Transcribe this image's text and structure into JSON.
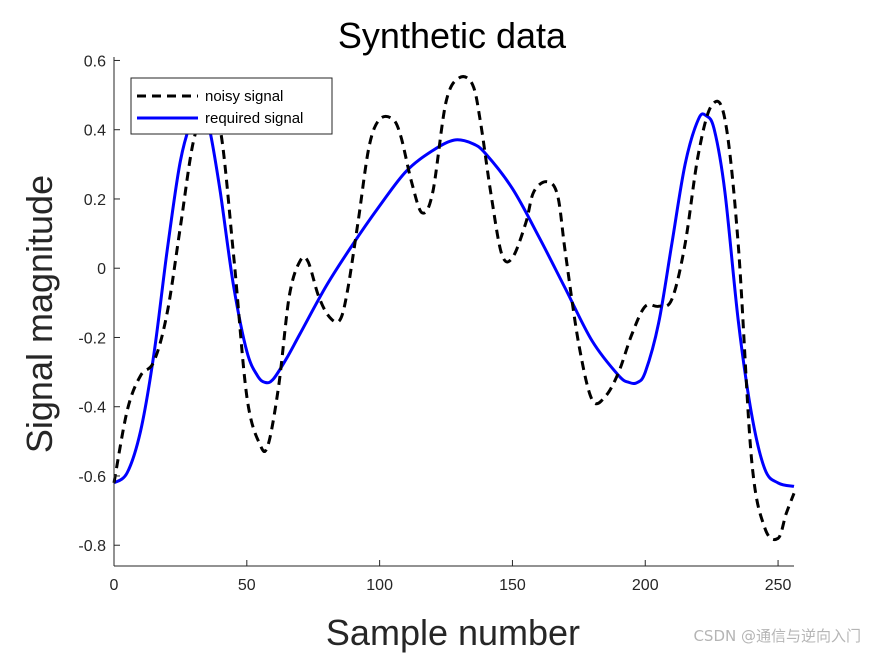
{
  "chart_data": {
    "type": "line",
    "title": "Synthetic data",
    "xlabel": "Sample number",
    "ylabel": "Signal magnitude",
    "xlim": [
      0,
      256
    ],
    "ylim": [
      -0.86,
      0.61
    ],
    "xticks": [
      0,
      50,
      100,
      150,
      200,
      250
    ],
    "yticks": [
      -0.8,
      -0.6,
      -0.4,
      -0.2,
      0,
      0.2,
      0.4,
      0.6
    ],
    "ytick_labels": [
      "-0.8",
      "-0.6",
      "-0.4",
      "-0.2",
      "0",
      "0.2",
      "0.4",
      "0.6"
    ],
    "grid": false,
    "legend_position": "top-left",
    "series": [
      {
        "name": "noisy signal",
        "color": "#000000",
        "style": "dashed",
        "x": [
          0,
          5,
          10,
          15,
          20,
          25,
          30,
          35,
          40,
          45,
          50,
          55,
          58,
          62,
          66,
          70,
          73,
          77,
          81,
          85,
          88,
          92,
          96,
          100,
          105,
          108,
          112,
          116,
          120,
          125,
          130,
          135,
          138,
          142,
          146,
          150,
          155,
          158,
          163,
          167,
          170,
          175,
          180,
          185,
          190,
          195,
          200,
          205,
          210,
          215,
          220,
          225,
          230,
          235,
          240,
          245,
          250,
          253,
          256
        ],
        "y": [
          -0.62,
          -0.41,
          -0.31,
          -0.27,
          -0.13,
          0.12,
          0.37,
          0.45,
          0.4,
          0.04,
          -0.37,
          -0.51,
          -0.51,
          -0.34,
          -0.08,
          0.02,
          0.02,
          -0.08,
          -0.14,
          -0.15,
          -0.06,
          0.14,
          0.35,
          0.43,
          0.43,
          0.38,
          0.25,
          0.16,
          0.22,
          0.48,
          0.55,
          0.53,
          0.42,
          0.21,
          0.04,
          0.03,
          0.13,
          0.22,
          0.25,
          0.21,
          0.04,
          -0.22,
          -0.38,
          -0.37,
          -0.3,
          -0.19,
          -0.11,
          -0.11,
          -0.09,
          0.07,
          0.33,
          0.47,
          0.43,
          0.07,
          -0.55,
          -0.75,
          -0.78,
          -0.71,
          -0.65
        ]
      },
      {
        "name": "required signal",
        "color": "#0000ff",
        "style": "solid",
        "x": [
          0,
          5,
          10,
          15,
          20,
          25,
          30,
          33,
          36,
          40,
          45,
          50,
          54,
          57,
          60,
          65,
          70,
          80,
          90,
          100,
          110,
          120,
          128,
          135,
          140,
          150,
          160,
          170,
          180,
          190,
          194,
          197,
          200,
          205,
          210,
          215,
          220,
          223,
          226,
          230,
          235,
          240,
          245,
          250,
          256
        ],
        "y": [
          -0.62,
          -0.59,
          -0.47,
          -0.25,
          0.05,
          0.31,
          0.44,
          0.45,
          0.4,
          0.22,
          -0.05,
          -0.24,
          -0.31,
          -0.33,
          -0.32,
          -0.26,
          -0.19,
          -0.05,
          0.07,
          0.18,
          0.28,
          0.34,
          0.37,
          0.36,
          0.33,
          0.23,
          0.09,
          -0.06,
          -0.21,
          -0.31,
          -0.33,
          -0.33,
          -0.3,
          -0.16,
          0.07,
          0.3,
          0.43,
          0.44,
          0.4,
          0.22,
          -0.15,
          -0.42,
          -0.58,
          -0.62,
          -0.63
        ]
      }
    ]
  },
  "watermark": "CSDN @通信与逆向入门"
}
